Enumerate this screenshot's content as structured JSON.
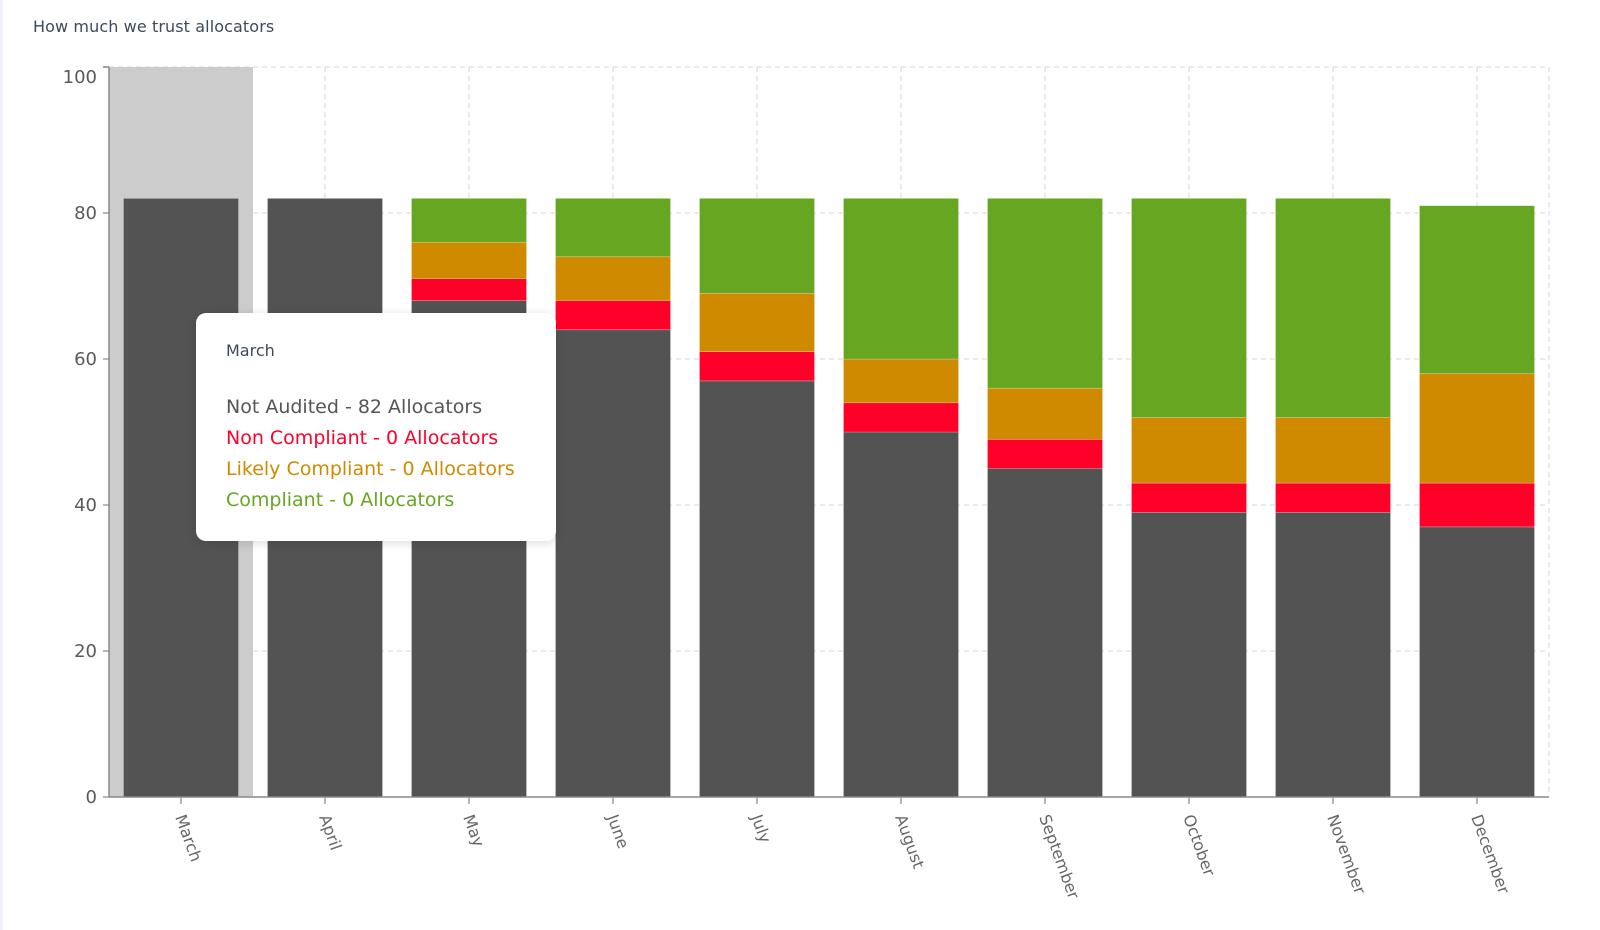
{
  "title": "How much we trust allocators",
  "colors": {
    "not_audited": "#535353",
    "non_compliant": "#ff0029",
    "likely_compliant": "#cf8a00",
    "compliant": "#67a621",
    "highlight": "#cccccc",
    "tooltip_title": "#3b4a5e",
    "tooltip_not_audited": "#555555"
  },
  "tooltip": {
    "title": "March",
    "lines": [
      {
        "text": "Not Audited - 82 Allocators",
        "series": "not_audited"
      },
      {
        "text": "Non Compliant - 0 Allocators",
        "series": "non_compliant"
      },
      {
        "text": "Likely Compliant - 0 Allocators",
        "series": "likely_compliant"
      },
      {
        "text": "Compliant - 0 Allocators",
        "series": "compliant"
      }
    ]
  },
  "chart_data": {
    "type": "bar",
    "stacked": true,
    "title": "How much we trust allocators",
    "xlabel": "",
    "ylabel": "",
    "ylim": [
      0,
      100
    ],
    "yticks": [
      0,
      20,
      40,
      60,
      80,
      100
    ],
    "grid": true,
    "highlighted_category": "March",
    "categories": [
      "March",
      "April",
      "May",
      "June",
      "July",
      "August",
      "September",
      "October",
      "November",
      "December"
    ],
    "series": [
      {
        "name": "Not Audited",
        "key": "not_audited",
        "values": [
          82,
          82,
          68,
          64,
          57,
          50,
          45,
          39,
          39,
          37
        ]
      },
      {
        "name": "Non Compliant",
        "key": "non_compliant",
        "values": [
          0,
          0,
          3,
          4,
          4,
          4,
          4,
          4,
          4,
          6
        ]
      },
      {
        "name": "Likely Compliant",
        "key": "likely_compliant",
        "values": [
          0,
          0,
          5,
          6,
          8,
          6,
          7,
          9,
          9,
          15
        ]
      },
      {
        "name": "Compliant",
        "key": "compliant",
        "values": [
          0,
          0,
          6,
          8,
          13,
          22,
          26,
          30,
          30,
          23
        ]
      }
    ]
  }
}
